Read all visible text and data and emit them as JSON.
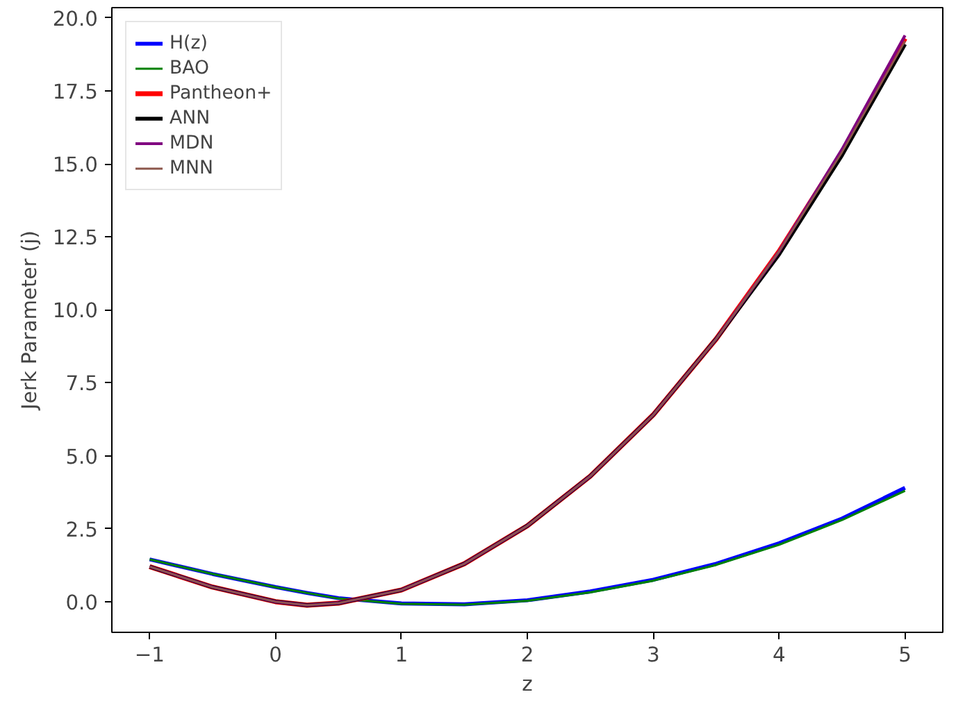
{
  "chart_data": {
    "type": "line",
    "xlabel": "z",
    "ylabel": "Jerk Parameter (j)",
    "x": [
      -1,
      -0.5,
      0,
      0.25,
      0.5,
      1,
      1.5,
      2,
      2.5,
      3,
      3.5,
      4,
      4.5,
      5
    ],
    "series": [
      {
        "name": "H(z)",
        "color": "#0000ff",
        "values": [
          1.45,
          0.95,
          0.5,
          0.3,
          0.12,
          -0.06,
          -0.09,
          0.05,
          0.35,
          0.75,
          1.3,
          2.0,
          2.85,
          3.9
        ]
      },
      {
        "name": "BAO",
        "color": "#008000",
        "values": [
          1.45,
          0.95,
          0.5,
          0.3,
          0.11,
          -0.07,
          -0.1,
          0.03,
          0.32,
          0.72,
          1.26,
          1.95,
          2.8,
          3.8
        ]
      },
      {
        "name": "Pantheon+",
        "color": "#ff0000",
        "values": [
          1.2,
          0.5,
          0.0,
          -0.12,
          -0.05,
          0.4,
          1.3,
          2.6,
          4.3,
          6.4,
          9.0,
          12.0,
          15.4,
          19.3
        ]
      },
      {
        "name": "ANN",
        "color": "#000000",
        "values": [
          1.2,
          0.5,
          0.0,
          -0.12,
          -0.05,
          0.4,
          1.3,
          2.6,
          4.3,
          6.4,
          9.0,
          11.9,
          15.3,
          19.1
        ]
      },
      {
        "name": "MDN",
        "color": "#800080",
        "values": [
          1.2,
          0.5,
          0.0,
          -0.12,
          -0.05,
          0.4,
          1.3,
          2.6,
          4.3,
          6.4,
          9.0,
          12.0,
          15.5,
          19.4
        ]
      },
      {
        "name": "MNN",
        "color": "#8c564b",
        "values": [
          1.2,
          0.5,
          0.0,
          -0.12,
          -0.05,
          0.4,
          1.3,
          2.6,
          4.3,
          6.4,
          9.0,
          12.0,
          15.4,
          19.2
        ]
      }
    ],
    "xlim": [
      -1.3,
      5.3
    ],
    "ylim": [
      -1.05,
      20.35
    ],
    "xticks": [
      {
        "value": -1,
        "label": "−1"
      },
      0,
      1,
      2,
      3,
      4,
      5
    ],
    "yticks": [
      {
        "value": 0,
        "label": "0.0"
      },
      {
        "value": 2.5,
        "label": "2.5"
      },
      {
        "value": 5,
        "label": "5.0"
      },
      {
        "value": 7.5,
        "label": "7.5"
      },
      {
        "value": 10,
        "label": "10.0"
      },
      {
        "value": 12.5,
        "label": "12.5"
      },
      {
        "value": 15,
        "label": "15.0"
      },
      {
        "value": 17.5,
        "label": "17.5"
      },
      {
        "value": 20,
        "label": "20.0"
      }
    ],
    "grid": false,
    "legend": "top left"
  }
}
